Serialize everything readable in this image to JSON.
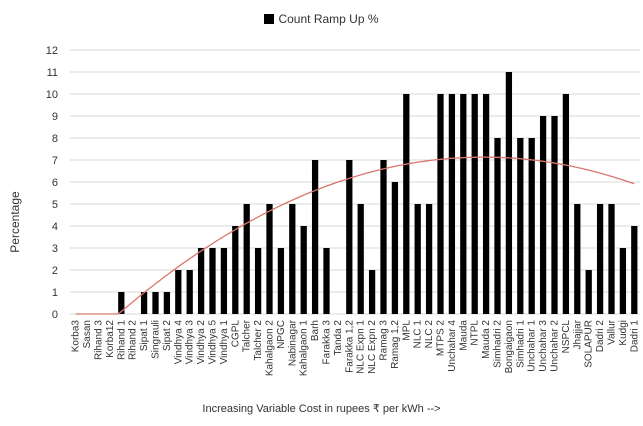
{
  "chart_data": {
    "type": "bar",
    "legend_label": "Count Ramp Up %",
    "legend_position": "top",
    "ylabel": "Percentage",
    "xlabel": "Increasing Variable Cost in rupees ₹ per kWh -->",
    "ylim": [
      0,
      12
    ],
    "yticks": [
      0,
      1,
      2,
      3,
      4,
      5,
      6,
      7,
      8,
      9,
      10,
      11,
      12
    ],
    "grid": true,
    "bar_color": "#000000",
    "trend_color": "#d9776f",
    "categories": [
      "Korba3",
      "Sasan",
      "Rihand 3",
      "Korba12",
      "Rihand 1",
      "Rihand 2",
      "Sipat 1",
      "Singrauli",
      "Sipat 2",
      "Vindhya 4",
      "Vindhya 3",
      "Vindhya 2",
      "Vindhya 5",
      "Vindhya 1",
      "CGPL",
      "Talcher",
      "Talcher 2",
      "Kahalgaon 2",
      "NPGC",
      "Nabinagar",
      "Kahalgaon 1",
      "Barh",
      "Farakka 3",
      "Tanda 2",
      "Farakka 1,2",
      "NLC Expn 1",
      "NLC Expn 2",
      "Ramag 3",
      "Ramag 1,2",
      "MPL",
      "NLC 1",
      "NLC 2",
      "MTPS 2",
      "Unchahar 4",
      "Mauda",
      "NTPL",
      "Mauda 2",
      "Simhadri 2",
      "Bongaigaon",
      "Simhadri 1",
      "Unchahar 1",
      "Unchahar 3",
      "Unchahar 2",
      "NSPCL",
      "Jhajjar",
      "SOLAPUR",
      "Dadri 2",
      "Vallur",
      "Kudgi",
      "Dadri 1"
    ],
    "values": [
      0,
      0,
      0,
      0,
      1,
      0,
      1,
      1,
      1,
      2,
      2,
      3,
      3,
      3,
      4,
      5,
      3,
      5,
      3,
      5,
      4,
      7,
      3,
      0,
      7,
      5,
      2,
      7,
      6,
      10,
      5,
      5,
      10,
      10,
      10,
      10,
      10,
      8,
      11,
      8,
      8,
      9,
      9,
      10,
      5,
      2,
      5,
      5,
      3,
      4
    ]
  }
}
